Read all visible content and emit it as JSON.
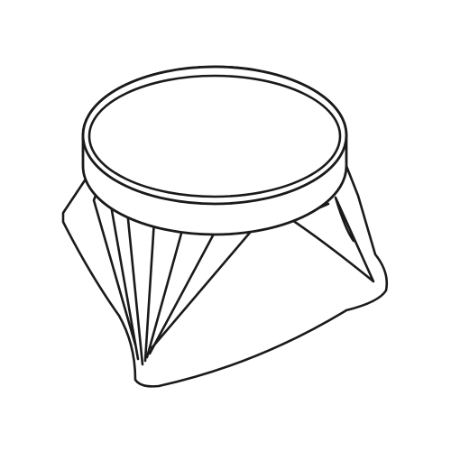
{
  "illustration": {
    "subject": "pleated-funnel-adapter",
    "colors": {
      "ink": "#1a1a1a",
      "paper": "#ffffff"
    }
  }
}
